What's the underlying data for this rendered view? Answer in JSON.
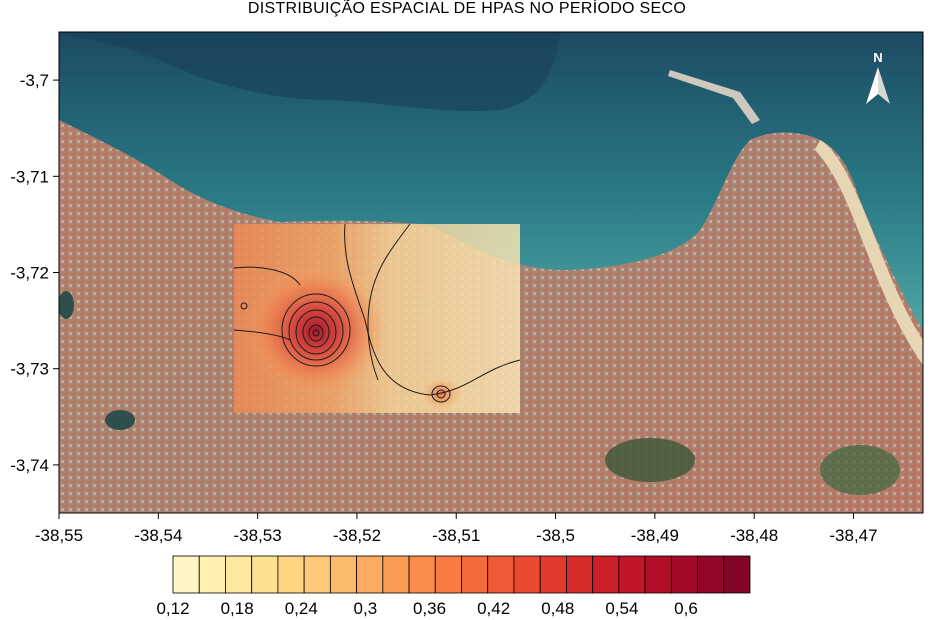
{
  "title": "DISTRIBUIÇÃO ESPACIAL DE HPAS NO PERÍODO SECO",
  "north_arrow": {
    "label": "N",
    "icon": "north-arrow-icon"
  },
  "axes": {
    "x_ticks": [
      "-38,55",
      "-38,54",
      "-38,53",
      "-38,52",
      "-38,51",
      "-38,5",
      "-38,49",
      "-38,48",
      "-38,47"
    ],
    "y_ticks": [
      "-3,7",
      "-3,71",
      "-3,72",
      "-3,73",
      "-3,74"
    ]
  },
  "colorbar": {
    "labels": [
      "0,12",
      "0,18",
      "0,24",
      "0,3",
      "0,36",
      "0,42",
      "0,48",
      "0,54",
      "0,6"
    ],
    "colors": [
      "#fff5c4",
      "#fff0b0",
      "#fee8a0",
      "#fde090",
      "#fdd583",
      "#fdc878",
      "#fcba6c",
      "#fcab60",
      "#fb9c55",
      "#f98c4b",
      "#f77b42",
      "#f46a3b",
      "#ef5a36",
      "#ea4a32",
      "#e23a2e",
      "#d82b2b",
      "#cd1f2a",
      "#c11528",
      "#b30e28",
      "#a30a28",
      "#920728",
      "#820527"
    ]
  },
  "chart_data": {
    "type": "heatmap",
    "title": "DISTRIBUIÇÃO ESPACIAL DE HPAS NO PERÍODO SECO",
    "x_range": [
      -38.55,
      -38.463
    ],
    "y_range": [
      -3.745,
      -3.695
    ],
    "x_ticks": [
      -38.55,
      -38.54,
      -38.53,
      -38.52,
      -38.51,
      -38.5,
      -38.49,
      -38.48,
      -38.47
    ],
    "y_ticks": [
      -3.7,
      -3.71,
      -3.72,
      -3.73,
      -3.74
    ],
    "color_scale": [
      0.12,
      0.18,
      0.24,
      0.3,
      0.36,
      0.42,
      0.48,
      0.54,
      0.6
    ],
    "interpolated_area": {
      "lon": [
        -38.532,
        -38.5025
      ],
      "lat": [
        -3.7155,
        -3.7345
      ]
    },
    "hotspots": [
      {
        "lon": -38.5235,
        "lat": -3.7265,
        "value": 0.6
      },
      {
        "lon": -38.51,
        "lat": -3.7328,
        "value": 0.36
      }
    ],
    "background": "satellite imagery of Fortaleza coastline"
  }
}
